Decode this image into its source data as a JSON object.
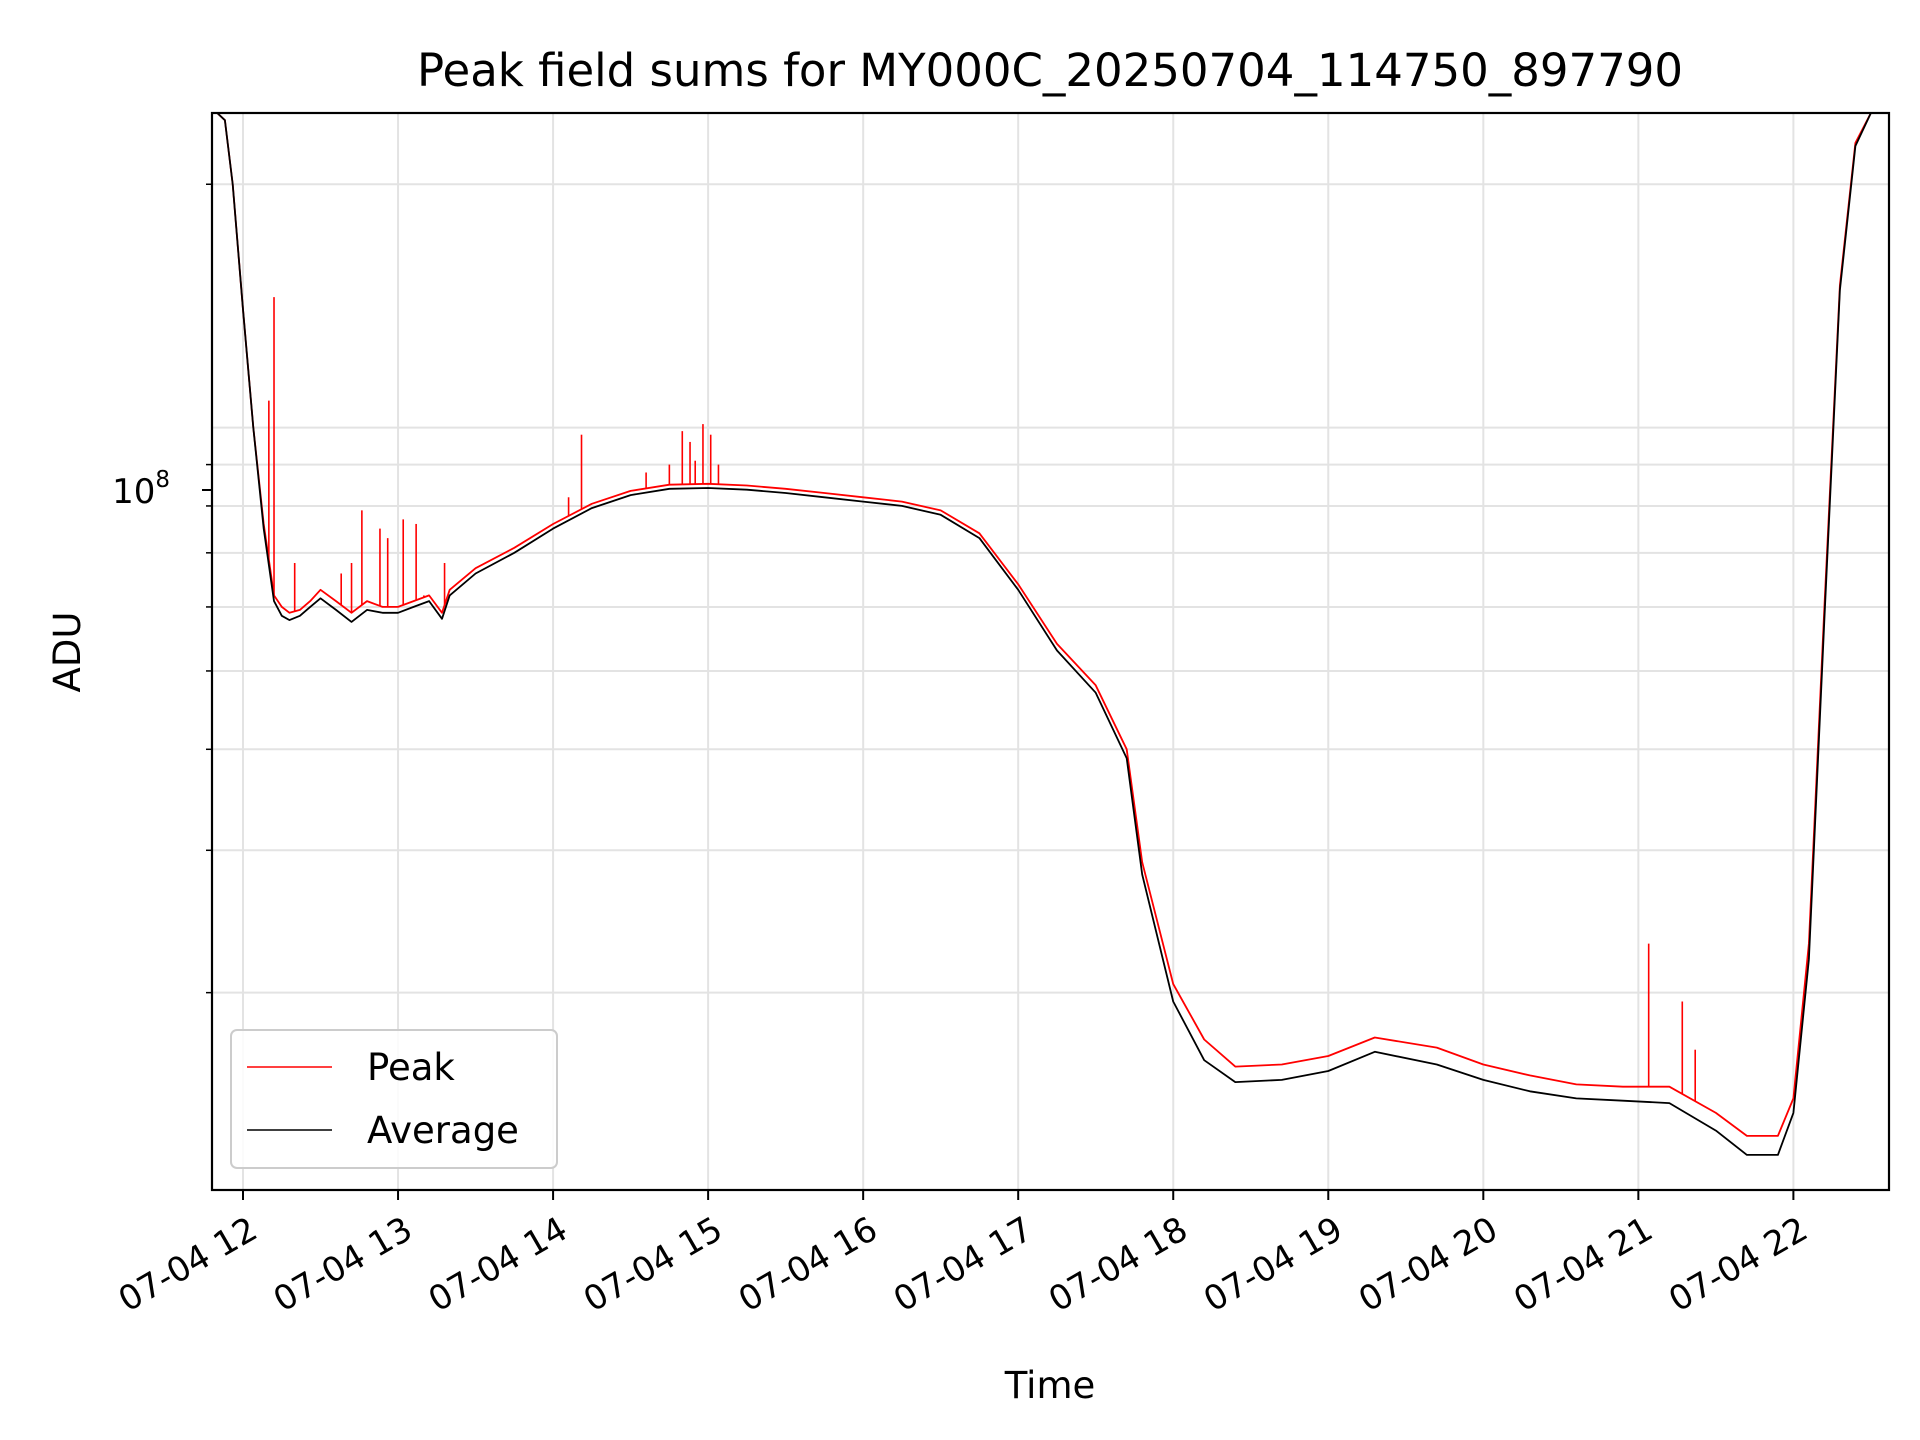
{
  "chart_data": {
    "type": "line",
    "title": "Peak field sums for MY000C_20250704_114750_897790",
    "xlabel": "Time",
    "ylabel": "ADU",
    "y_scale": "log",
    "y_base_label": "10",
    "y_exp_label": "8",
    "x_ticks": [
      "07-04 12",
      "07-04 13",
      "07-04 14",
      "07-04 15",
      "07-04 16",
      "07-04 17",
      "07-04 18",
      "07-04 19",
      "07-04 20",
      "07-04 21",
      "07-04 22"
    ],
    "x_hours": [
      12,
      13,
      14,
      15,
      16,
      17,
      18,
      19,
      20,
      21,
      22
    ],
    "xlim": [
      "07-04 11:48",
      "07-04 22:37"
    ],
    "ylim": [
      11400000,
      245000000
    ],
    "grid": true,
    "legend_position": "lower-left",
    "series": [
      {
        "name": "Peak",
        "color": "#ff0000",
        "x": [
          "07-04 11:50",
          "07-04 11:53",
          "07-04 11:56",
          "07-04 12:00",
          "07-04 12:04",
          "07-04 12:08",
          "07-04 12:12",
          "07-04 12:15",
          "07-04 12:18",
          "07-04 12:22",
          "07-04 12:26",
          "07-04 12:30",
          "07-04 12:36",
          "07-04 12:42",
          "07-04 12:48",
          "07-04 12:54",
          "07-04 13:00",
          "07-04 13:06",
          "07-04 13:12",
          "07-04 13:17",
          "07-04 13:20",
          "07-04 13:30",
          "07-04 13:45",
          "07-04 14:00",
          "07-04 14:15",
          "07-04 14:30",
          "07-04 14:45",
          "07-04 15:00",
          "07-04 15:15",
          "07-04 15:30",
          "07-04 15:45",
          "07-04 16:00",
          "07-04 16:15",
          "07-04 16:30",
          "07-04 16:45",
          "07-04 17:00",
          "07-04 17:15",
          "07-04 17:30",
          "07-04 17:42",
          "07-04 17:48",
          "07-04 18:00",
          "07-04 18:12",
          "07-04 18:24",
          "07-04 18:42",
          "07-04 19:00",
          "07-04 19:18",
          "07-04 19:42",
          "07-04 20:00",
          "07-04 20:18",
          "07-04 20:36",
          "07-04 20:54",
          "07-04 21:12",
          "07-04 21:30",
          "07-04 21:42",
          "07-04 21:54",
          "07-04 22:00",
          "07-04 22:06",
          "07-04 22:12",
          "07-04 22:18",
          "07-04 22:24",
          "07-04 22:30"
        ],
        "values": [
          245000000,
          240000000,
          200000000,
          140000000,
          100000000,
          76000000,
          62000000,
          60000000,
          59000000,
          59500000,
          61000000,
          63000000,
          61000000,
          59000000,
          61000000,
          60000000,
          60000000,
          61000000,
          62000000,
          59000000,
          63000000,
          67000000,
          71000000,
          76000000,
          80500000,
          83500000,
          85000000,
          85200000,
          84800000,
          84000000,
          83000000,
          82000000,
          81000000,
          79000000,
          74000000,
          64000000,
          54000000,
          48000000,
          40000000,
          29000000,
          20500000,
          17500000,
          16200000,
          16300000,
          16700000,
          17600000,
          17100000,
          16300000,
          15800000,
          15400000,
          15300000,
          15300000,
          14200000,
          13300000,
          13300000,
          14800000,
          23000000,
          60000000,
          150000000,
          225000000,
          245000000
        ]
      },
      {
        "name": "Average",
        "color": "#000000",
        "x": [
          "07-04 11:50",
          "07-04 11:53",
          "07-04 11:56",
          "07-04 12:00",
          "07-04 12:04",
          "07-04 12:08",
          "07-04 12:12",
          "07-04 12:15",
          "07-04 12:18",
          "07-04 12:22",
          "07-04 12:26",
          "07-04 12:30",
          "07-04 12:36",
          "07-04 12:42",
          "07-04 12:48",
          "07-04 12:54",
          "07-04 13:00",
          "07-04 13:06",
          "07-04 13:12",
          "07-04 13:17",
          "07-04 13:20",
          "07-04 13:30",
          "07-04 13:45",
          "07-04 14:00",
          "07-04 14:15",
          "07-04 14:30",
          "07-04 14:45",
          "07-04 15:00",
          "07-04 15:15",
          "07-04 15:30",
          "07-04 15:45",
          "07-04 16:00",
          "07-04 16:15",
          "07-04 16:30",
          "07-04 16:45",
          "07-04 17:00",
          "07-04 17:15",
          "07-04 17:30",
          "07-04 17:42",
          "07-04 17:48",
          "07-04 18:00",
          "07-04 18:12",
          "07-04 18:24",
          "07-04 18:42",
          "07-04 19:00",
          "07-04 19:18",
          "07-04 19:42",
          "07-04 20:00",
          "07-04 20:18",
          "07-04 20:36",
          "07-04 20:54",
          "07-04 21:12",
          "07-04 21:30",
          "07-04 21:42",
          "07-04 21:54",
          "07-04 22:00",
          "07-04 22:06",
          "07-04 22:12",
          "07-04 22:18",
          "07-04 22:24",
          "07-04 22:30"
        ],
        "values": [
          245000000,
          240000000,
          200000000,
          140000000,
          100000000,
          75000000,
          61000000,
          58500000,
          57800000,
          58500000,
          60000000,
          61500000,
          59500000,
          57500000,
          59500000,
          59000000,
          59000000,
          60000000,
          61000000,
          58000000,
          62000000,
          66000000,
          70000000,
          75000000,
          79500000,
          82500000,
          84000000,
          84200000,
          83800000,
          83000000,
          82000000,
          81000000,
          80000000,
          78000000,
          73000000,
          63000000,
          53000000,
          47000000,
          39000000,
          28000000,
          19500000,
          16500000,
          15500000,
          15600000,
          16000000,
          16900000,
          16300000,
          15600000,
          15100000,
          14800000,
          14700000,
          14600000,
          13500000,
          12600000,
          12600000,
          14200000,
          22000000,
          58000000,
          148000000,
          223000000,
          245000000
        ]
      }
    ],
    "spikes": [
      {
        "x": "07-04 12:12",
        "value": 145000000
      },
      {
        "x": "07-04 12:10",
        "value": 108000000
      },
      {
        "x": "07-04 12:20",
        "value": 68000000
      },
      {
        "x": "07-04 12:38",
        "value": 66000000
      },
      {
        "x": "07-04 12:42",
        "value": 68000000
      },
      {
        "x": "07-04 12:46",
        "value": 79000000
      },
      {
        "x": "07-04 12:53",
        "value": 75000000
      },
      {
        "x": "07-04 12:56",
        "value": 73000000
      },
      {
        "x": "07-04 13:02",
        "value": 77000000
      },
      {
        "x": "07-04 13:07",
        "value": 76000000
      },
      {
        "x": "07-04 13:10",
        "value": 62000000
      },
      {
        "x": "07-04 13:18",
        "value": 68000000
      },
      {
        "x": "07-04 14:06",
        "value": 82000000
      },
      {
        "x": "07-04 14:11",
        "value": 98000000
      },
      {
        "x": "07-04 14:36",
        "value": 88000000
      },
      {
        "x": "07-04 14:45",
        "value": 90000000
      },
      {
        "x": "07-04 14:50",
        "value": 99000000
      },
      {
        "x": "07-04 14:53",
        "value": 96000000
      },
      {
        "x": "07-04 14:55",
        "value": 91000000
      },
      {
        "x": "07-04 14:58",
        "value": 101000000
      },
      {
        "x": "07-04 15:01",
        "value": 98000000
      },
      {
        "x": "07-04 15:04",
        "value": 90000000
      },
      {
        "x": "07-04 21:04",
        "value": 23000000
      },
      {
        "x": "07-04 21:17",
        "value": 19500000
      },
      {
        "x": "07-04 21:22",
        "value": 17000000
      }
    ]
  }
}
